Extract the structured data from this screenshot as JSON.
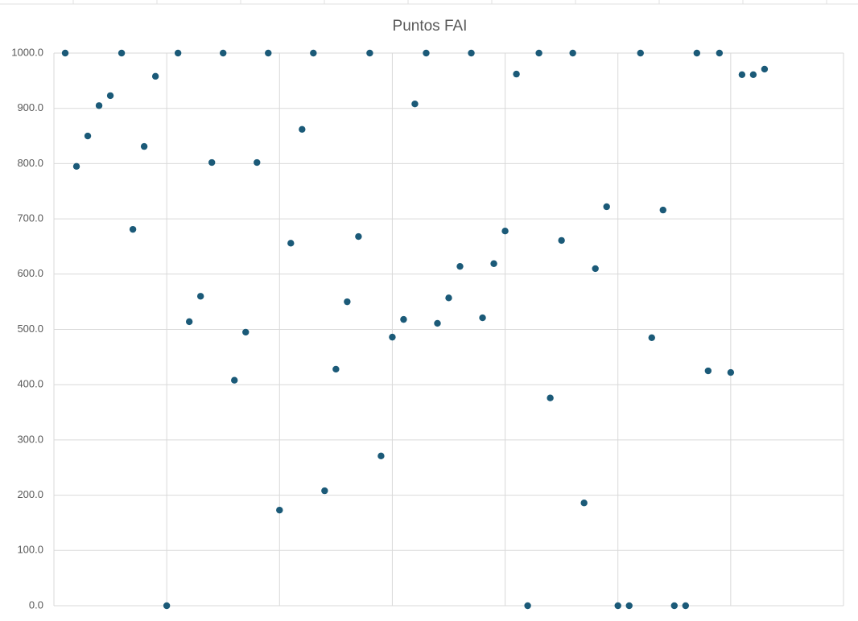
{
  "chart_data": {
    "type": "scatter",
    "title": "Puntos FAI",
    "series": [
      {
        "name": "Puntos FAI",
        "color": "#1b5a78",
        "x": [
          1,
          2,
          3,
          4,
          5,
          6,
          7,
          8,
          9,
          10,
          11,
          12,
          13,
          14,
          15,
          16,
          17,
          18,
          19,
          20,
          21,
          22,
          23,
          24,
          25,
          26,
          27,
          28,
          29,
          30,
          31,
          32,
          33,
          34,
          35,
          36,
          37,
          38,
          39,
          40,
          41,
          42,
          43,
          44,
          45,
          46,
          47,
          48,
          49,
          50,
          51,
          52,
          53,
          54,
          55,
          56,
          57,
          58,
          59,
          60,
          61,
          62,
          63
        ],
        "values": [
          1000,
          795,
          850,
          905,
          923,
          1000,
          681,
          831,
          958,
          0,
          1000,
          514,
          560,
          802,
          1000,
          408,
          495,
          802,
          1000,
          173,
          656,
          862,
          1000,
          208,
          428,
          550,
          668,
          1000,
          271,
          486,
          518,
          908,
          1000,
          511,
          557,
          614,
          1000,
          521,
          619,
          678,
          962,
          0,
          1000,
          376,
          661,
          1000,
          186,
          610,
          722,
          0,
          0,
          1000,
          485,
          716,
          0,
          0,
          1000,
          425,
          1000,
          422,
          961,
          961,
          971
        ]
      }
    ],
    "xlim": [
      0,
      70
    ],
    "xticks": [
      0,
      10,
      20,
      30,
      40,
      50,
      60,
      70
    ],
    "ylim": [
      0,
      1000
    ],
    "yticks": [
      {
        "value": 0,
        "label": "0.0"
      },
      {
        "value": 100,
        "label": "100.0"
      },
      {
        "value": 200,
        "label": "200.0"
      },
      {
        "value": 300,
        "label": "300.0"
      },
      {
        "value": 400,
        "label": "400.0"
      },
      {
        "value": 500,
        "label": "500.0"
      },
      {
        "value": 600,
        "label": "600.0"
      },
      {
        "value": 700,
        "label": "700.0"
      },
      {
        "value": 800,
        "label": "800.0"
      },
      {
        "value": 900,
        "label": "900.0"
      },
      {
        "value": 1000,
        "label": "1000.0"
      }
    ],
    "grid": true
  }
}
